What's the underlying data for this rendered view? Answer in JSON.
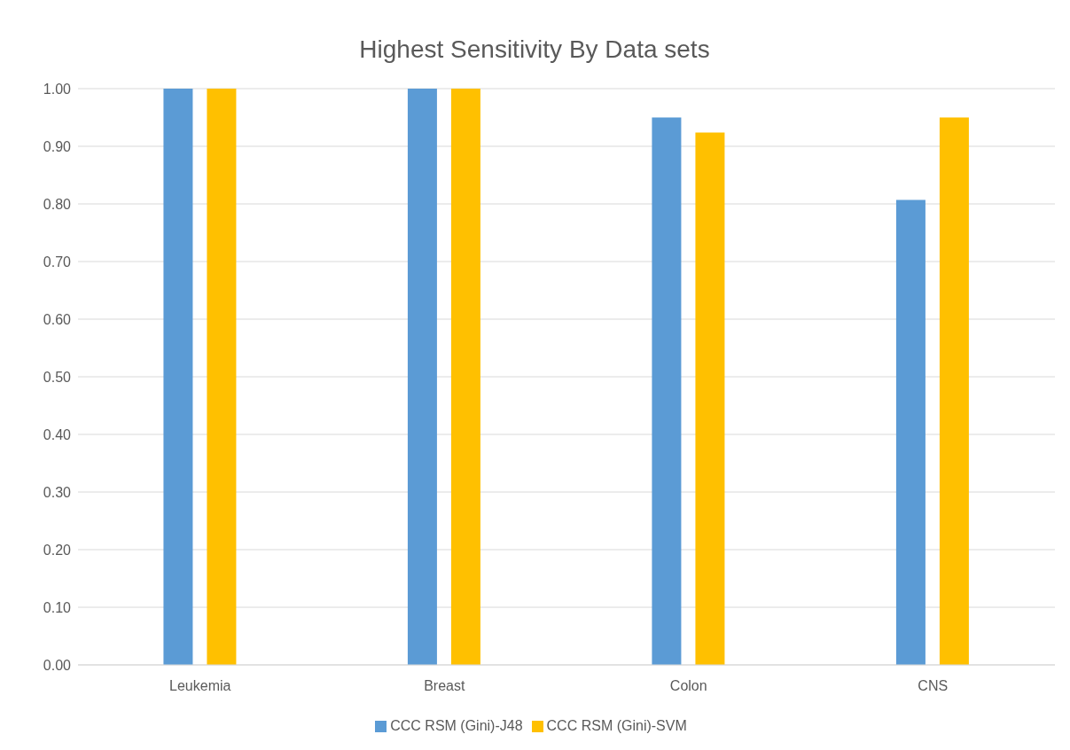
{
  "chart_data": {
    "type": "bar",
    "title": "Highest Sensitivity By Data sets",
    "categories": [
      "Leukemia",
      "Breast",
      "Colon",
      "CNS"
    ],
    "series": [
      {
        "name": "CCC RSM (Gini)-J48",
        "color": "#5b9bd5",
        "values": [
          1.0,
          1.0,
          0.95,
          0.807
        ]
      },
      {
        "name": "CCC RSM (Gini)-SVM",
        "color": "#ffc000",
        "values": [
          1.0,
          1.0,
          0.924,
          0.95
        ]
      }
    ],
    "ylim": [
      0,
      1
    ],
    "yticks": [
      {
        "value": 0,
        "label": "0.00"
      },
      {
        "value": 0.1,
        "label": "0.10"
      },
      {
        "value": 0.2,
        "label": "0.20"
      },
      {
        "value": 0.3,
        "label": "0.30"
      },
      {
        "value": 0.4,
        "label": "0.40"
      },
      {
        "value": 0.5,
        "label": "0.50"
      },
      {
        "value": 0.6,
        "label": "0.60"
      },
      {
        "value": 0.7,
        "label": "0.70"
      },
      {
        "value": 0.8,
        "label": "0.80"
      },
      {
        "value": 0.9,
        "label": "0.90"
      },
      {
        "value": 1,
        "label": "1.00"
      }
    ],
    "grid": "y",
    "legend": "bottom"
  }
}
